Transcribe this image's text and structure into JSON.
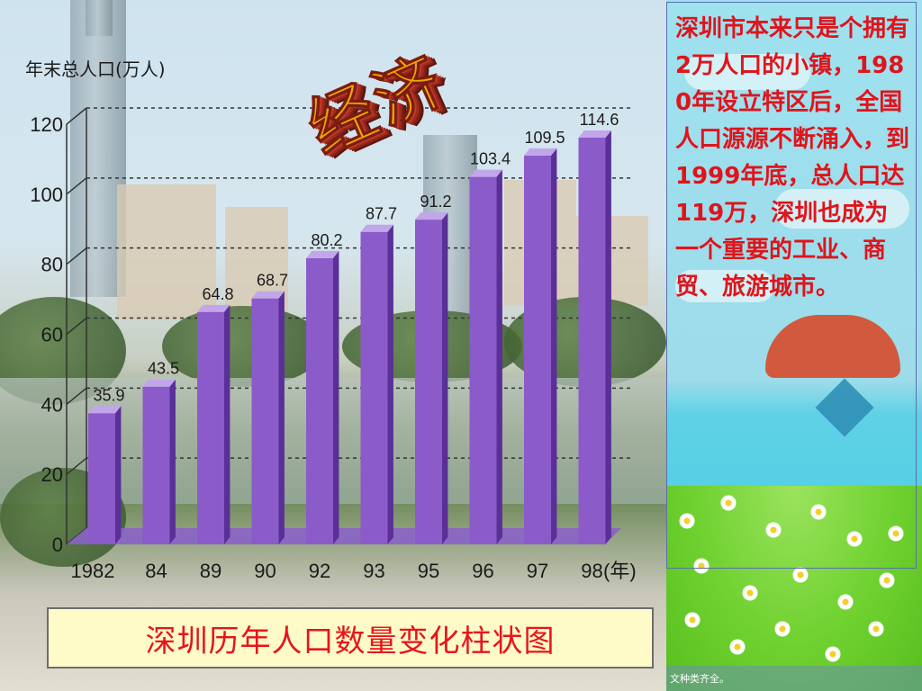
{
  "slide": {
    "wordart": "经济",
    "caption": "深圳历年人口数量变化柱状图",
    "side_text": "深圳市本来只是个拥有2万人口的小镇，1980年设立特区后，全国人口源源不断涌入，到1999年底，总人口达119万，深圳也成为一个重要的工业、商贸、旅游城市。",
    "footer_text": "文种类齐全。"
  },
  "colors": {
    "bar_front": "#8a5bc9",
    "bar_side": "#5a2f97",
    "bar_top": "#c2a6ea",
    "floor": "#8a63c6",
    "caption_text": "#e8141b",
    "side_text": "#e0141b",
    "wordart_fill": "#f2a400",
    "gridline": "#333333"
  },
  "chart_data": {
    "type": "bar",
    "ylabel": "年末总人口(万人)",
    "xlabel": "(年)",
    "categories": [
      "1982",
      "84",
      "89",
      "90",
      "92",
      "93",
      "95",
      "96",
      "97",
      "98"
    ],
    "values": [
      35.9,
      43.5,
      64.8,
      68.7,
      80.2,
      87.7,
      91.2,
      103.4,
      109.5,
      114.6
    ],
    "value_labels": [
      "35.9",
      "43.5",
      "64.8",
      "68.7",
      "80.2",
      "87.7",
      "91.2",
      "103.4",
      "109.5",
      "114.6"
    ],
    "ylim": [
      0,
      120
    ],
    "yticks": [
      "0",
      "20",
      "40",
      "60",
      "80",
      "100",
      "120"
    ],
    "grid": true,
    "style": "3d-bars"
  }
}
